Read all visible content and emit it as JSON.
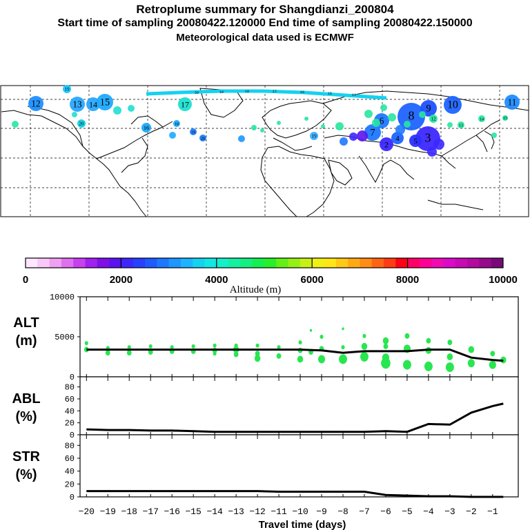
{
  "header": {
    "title": "Retroplume summary for Shangdianzi_200804",
    "line2": "Start time of sampling 20080422.120000     End time of sampling 20080422.150000",
    "line3": "Meteorological data used is ECMWF"
  },
  "map": {
    "description_labels": [
      "12",
      "13",
      "14",
      "15",
      "17",
      "18",
      "19",
      "20",
      "16",
      "11",
      "10",
      "8",
      "6",
      "5",
      "4",
      "3",
      "2",
      "1",
      "19",
      "20"
    ],
    "plume_labels": [
      {
        "t": "19",
        "color": "#19c8ff"
      },
      {
        "t": "12",
        "color": "#1e90ff"
      },
      {
        "t": "13",
        "color": "#2aa8ff"
      },
      {
        "t": "14",
        "color": "#2aa8ff"
      },
      {
        "t": "15",
        "color": "#1eaaff"
      },
      {
        "t": "17",
        "color": "#1ee0d0"
      },
      {
        "t": "20",
        "color": "#14d2e6"
      },
      {
        "t": "16",
        "color": "#1eaaff"
      },
      {
        "t": "18",
        "color": "#1eaaff"
      },
      {
        "t": "19",
        "color": "#1e7fff"
      },
      {
        "t": "20",
        "color": "#1e7fff"
      },
      {
        "t": "19",
        "color": "#3ab0ff"
      },
      {
        "t": "8",
        "color": "#1e64ff"
      },
      {
        "t": "9",
        "color": "#1e50ff"
      },
      {
        "t": "10",
        "color": "#1e64ff"
      },
      {
        "t": "11",
        "color": "#1e8cff"
      },
      {
        "t": "2",
        "color": "#3c28ff"
      },
      {
        "t": "3",
        "color": "#3c28ff"
      },
      {
        "t": "5",
        "color": "#2a30ff"
      },
      {
        "t": "4",
        "color": "#1e64ff"
      },
      {
        "t": "6",
        "color": "#1e78ff"
      },
      {
        "t": "7",
        "color": "#1e78ff"
      },
      {
        "t": "12",
        "color": "#28e6a0"
      },
      {
        "t": "13",
        "color": "#28e6a0"
      },
      {
        "t": "14",
        "color": "#28e6a0"
      },
      {
        "t": "15",
        "color": "#28e6a0"
      }
    ]
  },
  "colorbar": {
    "ticks": [
      "0",
      "2000",
      "4000",
      "6000",
      "8000",
      "10000"
    ],
    "label": "Altitude (m)",
    "colors": [
      "#ffe6ff",
      "#f8c8f8",
      "#f0a0f0",
      "#e070f0",
      "#c840f0",
      "#a020f0",
      "#8010e8",
      "#5a14f0",
      "#3c28ff",
      "#2840ff",
      "#1e5aff",
      "#1e78ff",
      "#1e96ff",
      "#1eb4ff",
      "#14d2f0",
      "#14e6e6",
      "#14f0c8",
      "#14f0a0",
      "#14f080",
      "#14f050",
      "#28f028",
      "#64f014",
      "#96f014",
      "#c8f014",
      "#f0f014",
      "#ffe614",
      "#ffc814",
      "#ffaa14",
      "#ff8c14",
      "#ff6414",
      "#ff3c14",
      "#ff0014",
      "#ff0064",
      "#ff0096",
      "#f00ab4",
      "#dc0ac8",
      "#c80ab4",
      "#b40aa0",
      "#960a8c",
      "#780a78"
    ]
  },
  "chart_data": [
    {
      "type": "line",
      "panel": "ALT",
      "ylabel_line1": "ALT",
      "ylabel_line2": "(m)",
      "ylim": [
        0,
        10000
      ],
      "yticks": [
        "10000",
        "5000",
        "0"
      ],
      "x": [
        -20,
        -19,
        -18,
        -17,
        -16,
        -15,
        -14,
        -13,
        -12,
        -11,
        -10,
        -9,
        -8,
        -7,
        -6,
        -5,
        -4,
        -3,
        -2,
        -1,
        -0.5
      ],
      "values": [
        3400,
        3400,
        3400,
        3400,
        3400,
        3400,
        3400,
        3400,
        3400,
        3400,
        3400,
        3300,
        3000,
        3200,
        3200,
        3200,
        3400,
        3400,
        2400,
        2100,
        2000
      ],
      "scatter_note": "green particle altitude markers scattered 2000-6500 m"
    },
    {
      "type": "line",
      "panel": "ABL",
      "ylabel_line1": "ABL",
      "ylabel_line2": "(%)",
      "ylim": [
        0,
        90
      ],
      "yticks": [
        "80",
        "60",
        "40",
        "20",
        "0"
      ],
      "x": [
        -20,
        -19,
        -18,
        -17,
        -16,
        -15,
        -14,
        -13,
        -12,
        -11,
        -10,
        -9,
        -8,
        -7,
        -6,
        -5,
        -4,
        -3,
        -2,
        -1,
        -0.5
      ],
      "values": [
        9,
        8,
        8,
        7,
        7,
        6,
        5,
        5,
        5,
        5,
        5,
        5,
        5,
        5,
        6,
        5,
        18,
        17,
        37,
        48,
        52
      ]
    },
    {
      "type": "line",
      "panel": "STR",
      "ylabel_line1": "STR",
      "ylabel_line2": "(%)",
      "ylim": [
        0,
        90
      ],
      "yticks": [
        "80",
        "60",
        "40",
        "20",
        "0"
      ],
      "x": [
        -20,
        -19,
        -18,
        -17,
        -16,
        -15,
        -14,
        -13,
        -12,
        -11,
        -10,
        -9,
        -8,
        -7,
        -6,
        -5,
        -4,
        -3,
        -2,
        -1,
        -0.5
      ],
      "values": [
        9,
        9,
        9,
        9,
        9,
        9,
        9,
        9,
        9,
        8,
        8,
        8,
        8,
        8,
        3,
        2,
        1,
        1,
        0,
        0,
        0
      ]
    }
  ],
  "xaxis": {
    "ticks": [
      "−20",
      "−19",
      "−18",
      "−17",
      "−16",
      "−15",
      "−14",
      "−13",
      "−12",
      "−11",
      "−10",
      "−9",
      "−8",
      "−7",
      "−6",
      "−5",
      "−4",
      "−3",
      "−2",
      "−1"
    ],
    "label": "Travel time (days)"
  }
}
